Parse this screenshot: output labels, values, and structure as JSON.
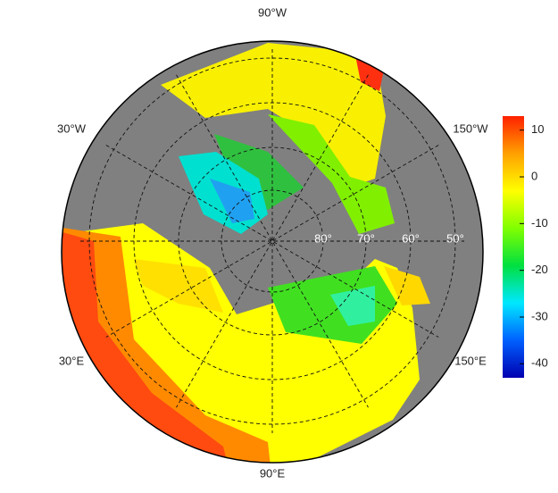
{
  "map": {
    "lon_labels": [
      "90°W",
      "30°W",
      "150°W",
      "30°E",
      "150°E",
      "90°E"
    ],
    "lat_labels": [
      "80°",
      "70°",
      "60°",
      "50°"
    ]
  },
  "colorbar": {
    "lim": [
      -43,
      13
    ],
    "ticks": [
      10,
      0,
      -10,
      -20,
      -30,
      -40
    ],
    "colors": [
      "#0000b0",
      "#0060ff",
      "#00e8ff",
      "#00e040",
      "#80ff00",
      "#ffff00",
      "#ffa000",
      "#ff2000"
    ]
  }
}
